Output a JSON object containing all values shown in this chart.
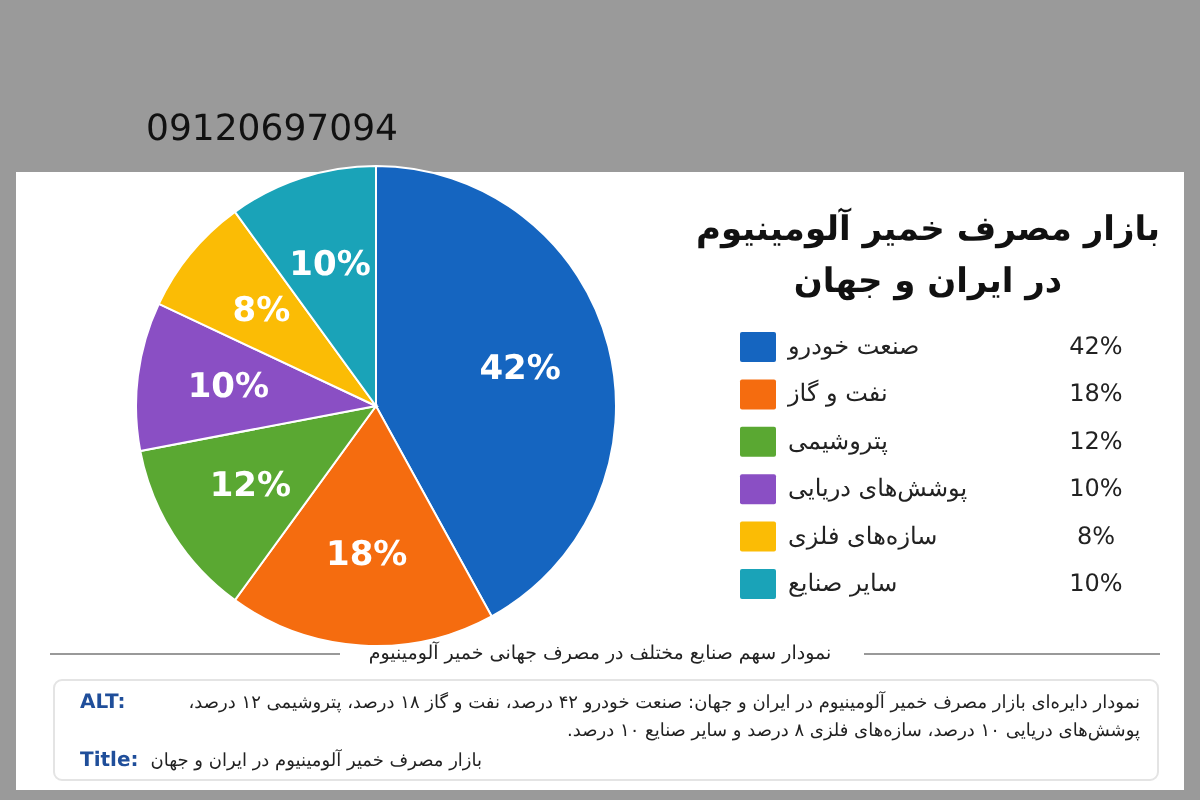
{
  "chart_data": {
    "type": "pie",
    "title": "بازار مصرف خمیر آلومینیوم\nدر ایران و جهان",
    "categories": [
      "صنعت خودرو",
      "نفت و گاز",
      "پتروشیمی",
      "پوشش‌های دریایی",
      "سازه‌های فلزی",
      "سایر صنایع"
    ],
    "values": [
      42,
      18,
      12,
      10,
      8,
      10
    ],
    "value_labels": [
      "42%",
      "18%",
      "12%",
      "10%",
      "8%",
      "10%"
    ],
    "colors": [
      "#1565c0",
      "#f56c0f",
      "#5aa832",
      "#8a4fc4",
      "#fbbc05",
      "#1aa3b8"
    ],
    "legend": "right",
    "annotations": [
      "09120697094",
      "نمودار سهم صنایع مختلف در مصرف جهانی خمیر آلومینیوم",
      "ALT: نمودار دایره‌ای بازار مصرف خمیر آلومینیوم در ایران و جهان: صنعت خودرو ۴۲ درصد، نفت و گاز ۱۸ درصد، پتروشیمی ۱۲ درصد، پوشش‌های دریایی ۱۰ درصد، سازه‌های فلزی ۸ درصد و سایر صنایع ۱۰ درصد.",
      "Title: بازار مصرف خمیر آلومینیوم در ایران و جهان"
    ]
  }
}
